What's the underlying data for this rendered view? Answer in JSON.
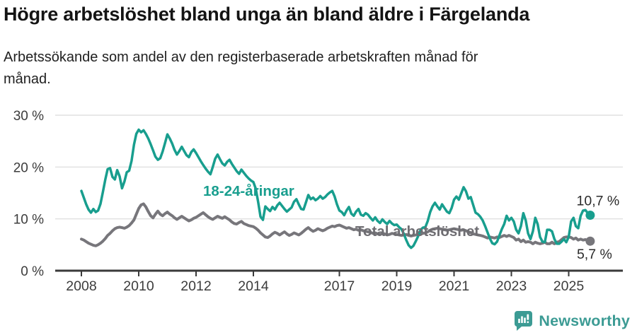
{
  "header": {
    "title": "Högre arbetslöshet bland unga än bland äldre i Färgelanda",
    "subtitle": "Arbetssökande som andel av den registerbaserade arbetskraften månad för månad."
  },
  "footer": {
    "brand": "Newsworthy",
    "logo_icon": "bar-chart-speech-bubble-icon",
    "brand_color": "#3c9b94"
  },
  "chart_data": {
    "type": "line",
    "title": "Högre arbetslöshet bland unga än bland äldre i Färgelanda",
    "unit": "%",
    "x_start": "2008-01",
    "x_end": "2025-10",
    "months_per_point": 1,
    "ylim": [
      0,
      30
    ],
    "grid": "horizontal",
    "y_ticks": [
      {
        "value": 0,
        "label": "0 %"
      },
      {
        "value": 10,
        "label": "10 %"
      },
      {
        "value": 20,
        "label": "20 %"
      },
      {
        "value": 30,
        "label": "30 %"
      }
    ],
    "x_ticks": [
      {
        "year": 2008,
        "label": "2008"
      },
      {
        "year": 2010,
        "label": "2010"
      },
      {
        "year": 2012,
        "label": "2012"
      },
      {
        "year": 2014,
        "label": "2014"
      },
      {
        "year": 2017,
        "label": "2017"
      },
      {
        "year": 2019,
        "label": "2019"
      },
      {
        "year": 2021,
        "label": "2021"
      },
      {
        "year": 2023,
        "label": "2023"
      },
      {
        "year": 2025,
        "label": "2025"
      }
    ],
    "series": [
      {
        "name": "18-24-åringar",
        "color": "#189e8e",
        "end_label": "10,7 %",
        "last_value": 10.7,
        "values": [
          15.4,
          14.1,
          12.8,
          11.8,
          11.2,
          11.9,
          11.3,
          11.6,
          12.9,
          15.2,
          17.6,
          19.6,
          19.8,
          18.1,
          17.6,
          19.4,
          18.2,
          15.9,
          17.2,
          19.0,
          19.3,
          21.2,
          24.3,
          26.4,
          27.2,
          26.7,
          27.1,
          26.4,
          25.5,
          24.4,
          23.2,
          22.0,
          21.4,
          21.7,
          23.0,
          24.6,
          26.3,
          25.5,
          24.5,
          23.3,
          22.4,
          23.1,
          23.9,
          23.1,
          22.3,
          21.9,
          22.9,
          23.4,
          22.7,
          21.9,
          21.1,
          20.4,
          19.7,
          19.1,
          18.6,
          20.0,
          21.6,
          22.4,
          21.5,
          20.7,
          20.3,
          21.0,
          21.4,
          20.6,
          19.9,
          19.2,
          18.7,
          19.5,
          18.9,
          18.3,
          17.8,
          17.4,
          17.1,
          15.8,
          13.2,
          10.4,
          9.8,
          12.4,
          11.9,
          11.5,
          12.3,
          11.8,
          12.6,
          13.1,
          12.5,
          11.9,
          11.4,
          11.8,
          12.2,
          13.3,
          13.8,
          12.8,
          11.9,
          11.8,
          13.2,
          14.6,
          13.8,
          14.1,
          13.6,
          13.9,
          14.4,
          13.9,
          14.2,
          14.7,
          15.1,
          15.4,
          14.3,
          12.8,
          11.6,
          11.3,
          10.7,
          11.6,
          12.3,
          11.0,
          10.6,
          11.4,
          11.9,
          10.8,
          10.6,
          11.1,
          10.8,
          10.2,
          9.7,
          10.3,
          9.6,
          9.2,
          9.9,
          9.4,
          9.0,
          9.6,
          9.1,
          8.8,
          8.9,
          8.4,
          8.0,
          7.1,
          5.9,
          4.9,
          4.4,
          4.8,
          5.7,
          6.7,
          7.9,
          8.3,
          8.4,
          9.6,
          11.3,
          12.4,
          13.1,
          12.4,
          11.8,
          12.8,
          12.1,
          11.4,
          11.1,
          12.1,
          13.7,
          14.3,
          13.7,
          14.9,
          16.1,
          15.3,
          13.9,
          14.2,
          12.7,
          11.2,
          10.9,
          10.4,
          9.7,
          8.6,
          7.4,
          6.2,
          5.3,
          5.1,
          5.6,
          6.8,
          8.0,
          9.0,
          10.6,
          9.7,
          10.2,
          9.5,
          7.9,
          7.2,
          8.6,
          11.1,
          9.7,
          7.2,
          6.1,
          7.6,
          10.2,
          9.0,
          6.5,
          5.6,
          5.5,
          7.9,
          7.9,
          7.6,
          6.1,
          5.2,
          5.2,
          5.6,
          6.1,
          5.5,
          6.5,
          9.5,
          10.2,
          8.6,
          8.2,
          10.6,
          11.6,
          11.7,
          11.1,
          10.7
        ]
      },
      {
        "name": "Total arbetslöshet",
        "color": "#77767b",
        "end_label": "5,7 %",
        "last_value": 5.7,
        "values": [
          6.1,
          5.9,
          5.6,
          5.3,
          5.1,
          4.9,
          4.8,
          5.0,
          5.3,
          5.7,
          6.2,
          6.8,
          7.2,
          7.7,
          8.1,
          8.3,
          8.4,
          8.3,
          8.2,
          8.4,
          8.7,
          9.2,
          9.8,
          10.9,
          12.0,
          12.7,
          12.9,
          12.3,
          11.4,
          10.6,
          10.2,
          10.9,
          11.5,
          10.9,
          10.6,
          11.0,
          11.3,
          10.9,
          10.6,
          10.2,
          9.9,
          10.2,
          10.5,
          10.2,
          9.9,
          9.6,
          9.8,
          10.1,
          10.3,
          10.6,
          10.9,
          11.2,
          10.8,
          10.4,
          10.1,
          9.9,
          10.2,
          10.5,
          10.3,
          10.1,
          10.4,
          10.1,
          9.8,
          9.4,
          9.1,
          9.0,
          9.3,
          9.5,
          9.1,
          8.9,
          8.7,
          8.6,
          8.5,
          8.2,
          7.8,
          7.3,
          6.9,
          6.5,
          6.4,
          6.7,
          7.1,
          7.4,
          7.2,
          6.9,
          7.2,
          7.5,
          7.1,
          6.8,
          7.0,
          7.3,
          7.1,
          6.9,
          7.2,
          7.6,
          8.0,
          8.3,
          7.9,
          7.6,
          7.8,
          8.1,
          7.9,
          7.7,
          7.9,
          8.2,
          8.4,
          8.6,
          8.5,
          8.7,
          8.8,
          8.6,
          8.4,
          8.2,
          8.3,
          8.1,
          7.9,
          8.0,
          7.8,
          7.9,
          7.7,
          7.6,
          7.5,
          7.4,
          7.2,
          7.3,
          7.1,
          7.0,
          7.2,
          7.1,
          6.9,
          7.0,
          7.2,
          7.1,
          7.0,
          6.9,
          6.8,
          6.9,
          7.0,
          6.8,
          6.7,
          6.8,
          6.9,
          7.0,
          7.1,
          7.2,
          7.3,
          7.5,
          7.8,
          8.0,
          8.1,
          8.2,
          8.1,
          8.0,
          7.9,
          7.8,
          7.9,
          8.0,
          8.1,
          8.0,
          7.9,
          7.8,
          7.9,
          7.7,
          7.5,
          7.3,
          7.1,
          7.0,
          6.9,
          6.8,
          6.7,
          6.5,
          6.3,
          6.5,
          6.4,
          6.3,
          6.5,
          6.4,
          6.6,
          6.8,
          6.6,
          6.8,
          6.6,
          6.4,
          5.9,
          6.1,
          5.6,
          5.9,
          5.5,
          5.6,
          5.5,
          5.2,
          5.5,
          5.3,
          5.2,
          5.3,
          5.5,
          5.2,
          5.2,
          5.5,
          5.2,
          5.5,
          5.6,
          6.0,
          6.4,
          6.5,
          6.5,
          6.4,
          6.1,
          6.3,
          5.9,
          6.1,
          5.9,
          6.0,
          5.8,
          5.7
        ]
      }
    ]
  }
}
